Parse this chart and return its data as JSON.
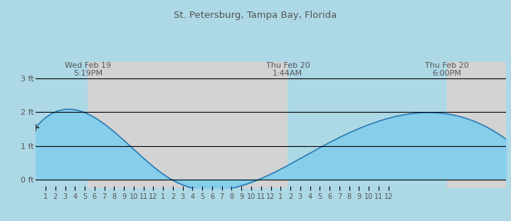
{
  "title": "St. Petersburg, Tampa Bay, Florida",
  "annotations": [
    {
      "label": "Wed Feb 19\n5:19PM",
      "x_hour": 5.317
    },
    {
      "label": "Thu Feb 20\n1:44AM",
      "x_hour": 25.733
    },
    {
      "label": "Thu Feb 20\n6:00PM",
      "x_hour": 42.0
    }
  ],
  "shade_regions": [
    {
      "x_start": 5.317,
      "x_end": 25.733
    },
    {
      "x_start": 42.0,
      "x_end": 48.0
    }
  ],
  "yticks": [
    0,
    1,
    2,
    3
  ],
  "ylim": [
    -0.25,
    3.5
  ],
  "xlim": [
    0,
    48
  ],
  "bg_color_light": "#add8e6",
  "bg_color_dark": "#d3d3d3",
  "fill_color": "#87ceeb",
  "fill_edge_color": "#2a7ab5",
  "grid_color": "#000000",
  "title_color": "#555555",
  "label_color": "#555555",
  "tick_label_color": "#555555",
  "x_hour_labels": [
    1,
    2,
    3,
    4,
    5,
    6,
    7,
    8,
    9,
    10,
    11,
    12,
    1,
    2,
    3,
    4,
    5,
    6,
    7,
    8,
    9,
    10,
    11,
    12,
    1,
    2,
    3,
    4,
    5,
    6,
    7,
    8,
    9,
    10,
    11,
    12
  ],
  "x_hour_positions": [
    1,
    2,
    3,
    4,
    5,
    6,
    7,
    8,
    9,
    10,
    11,
    12,
    13,
    14,
    15,
    16,
    17,
    18,
    19,
    20,
    21,
    22,
    23,
    24,
    25,
    26,
    27,
    28,
    29,
    30,
    31,
    32,
    33,
    34,
    35,
    36
  ],
  "high1_x": 5.317,
  "high1_y": 1.95,
  "low1_x": 13.733,
  "low1_y": 0.02,
  "high2_x": 30.0,
  "high2_y": 1.1,
  "high3_x": 42.0,
  "high3_y": 1.95,
  "current_x": 0.0,
  "current_y": 1.55
}
